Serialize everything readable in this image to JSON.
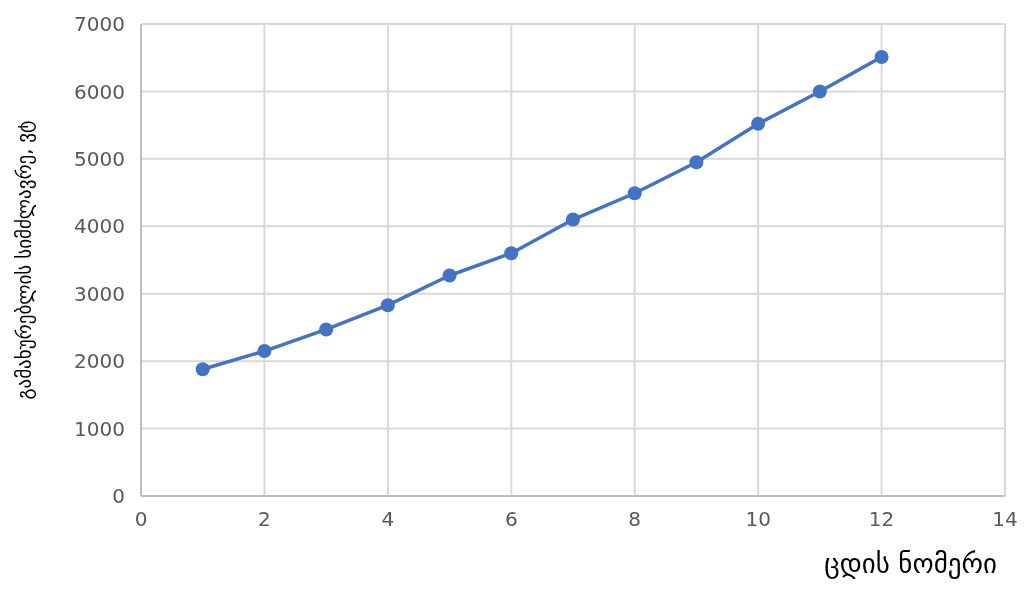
{
  "chart_data": {
    "type": "line",
    "xlabel": "ცდის ნომერი",
    "ylabel": "გამახურებლის სიმძლავრე, ვტ",
    "x": [
      1,
      2,
      3,
      4,
      5,
      6,
      7,
      8,
      9,
      10,
      11,
      12
    ],
    "series": [
      {
        "color": "#4472c4",
        "values": [
          1880,
          2150,
          2470,
          2830,
          3270,
          3600,
          4100,
          4490,
          4950,
          5520,
          6000,
          6510
        ]
      }
    ],
    "xlim": [
      0,
      14
    ],
    "xticks": [
      0,
      2,
      4,
      6,
      8,
      10,
      12,
      14
    ],
    "ylim": [
      0,
      7000
    ],
    "yticks": [
      0,
      1000,
      2000,
      3000,
      4000,
      5000,
      6000,
      7000
    ],
    "grid": true,
    "marker": "circle",
    "line_style": "solid",
    "legend": false
  }
}
